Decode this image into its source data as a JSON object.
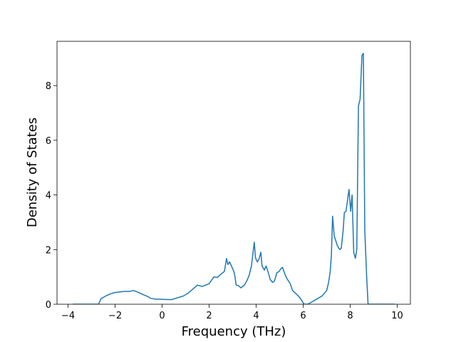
{
  "chart_data": {
    "type": "line",
    "xlabel": "Frequency (THz)",
    "ylabel": "Density of States",
    "xlim": [
      -4.47,
      10.56
    ],
    "ylim": [
      0,
      9.62
    ],
    "xticks": [
      {
        "value": -4,
        "label": "−4"
      },
      {
        "value": -2,
        "label": "−2"
      },
      0,
      2,
      4,
      6,
      8,
      10
    ],
    "yticks": [
      0,
      2,
      4,
      6,
      8
    ],
    "series": [
      {
        "color": "#1f77b4",
        "x": [
          -3.8,
          -2.7,
          -2.6,
          -2.4,
          -2.2,
          -2.0,
          -1.8,
          -1.6,
          -1.4,
          -1.2,
          -1.0,
          -0.8,
          -0.6,
          -0.5,
          -0.3,
          0,
          0.3,
          0.4,
          0.6,
          0.9,
          1.1,
          1.3,
          1.5,
          1.7,
          2.0,
          2.2,
          2.35,
          2.5,
          2.65,
          2.74,
          2.8,
          2.87,
          2.95,
          3.05,
          3.1,
          3.15,
          3.25,
          3.35,
          3.5,
          3.6,
          3.7,
          3.8,
          3.92,
          3.97,
          4.05,
          4.12,
          4.2,
          4.25,
          4.35,
          4.42,
          4.5,
          4.6,
          4.7,
          4.78,
          4.88,
          4.98,
          5.05,
          5.12,
          5.2,
          5.3,
          5.45,
          5.55,
          5.7,
          5.85,
          6.0,
          6.05,
          6.2,
          6.4,
          6.6,
          6.8,
          7.0,
          7.08,
          7.15,
          7.2,
          7.25,
          7.32,
          7.45,
          7.55,
          7.62,
          7.7,
          7.75,
          7.82,
          7.95,
          8.02,
          8.08,
          8.15,
          8.22,
          8.28,
          8.35,
          8.42,
          8.5,
          8.56,
          8.62,
          8.7,
          8.76,
          9.9
        ],
        "values": [
          0,
          0,
          0.2,
          0.3,
          0.38,
          0.43,
          0.45,
          0.47,
          0.47,
          0.5,
          0.43,
          0.35,
          0.28,
          0.22,
          0.19,
          0.18,
          0.17,
          0.17,
          0.22,
          0.3,
          0.4,
          0.55,
          0.7,
          0.65,
          0.75,
          1.0,
          0.98,
          1.1,
          1.2,
          1.67,
          1.45,
          1.55,
          1.4,
          1.2,
          1.0,
          0.7,
          0.68,
          0.6,
          0.7,
          0.85,
          1.05,
          1.4,
          2.27,
          1.7,
          1.55,
          1.65,
          1.9,
          1.4,
          1.25,
          1.4,
          1.2,
          0.9,
          0.8,
          0.85,
          1.15,
          1.2,
          1.3,
          1.35,
          1.15,
          0.95,
          0.75,
          0.5,
          0.38,
          0.25,
          0.05,
          0,
          0,
          0.1,
          0.2,
          0.3,
          0.5,
          0.8,
          1.2,
          1.8,
          3.22,
          2.5,
          2.15,
          2.0,
          2.05,
          2.7,
          3.35,
          3.4,
          4.2,
          3.4,
          4.0,
          1.9,
          1.68,
          2.0,
          7.25,
          7.5,
          9.1,
          9.18,
          2.7,
          1.0,
          0,
          0
        ]
      }
    ]
  }
}
